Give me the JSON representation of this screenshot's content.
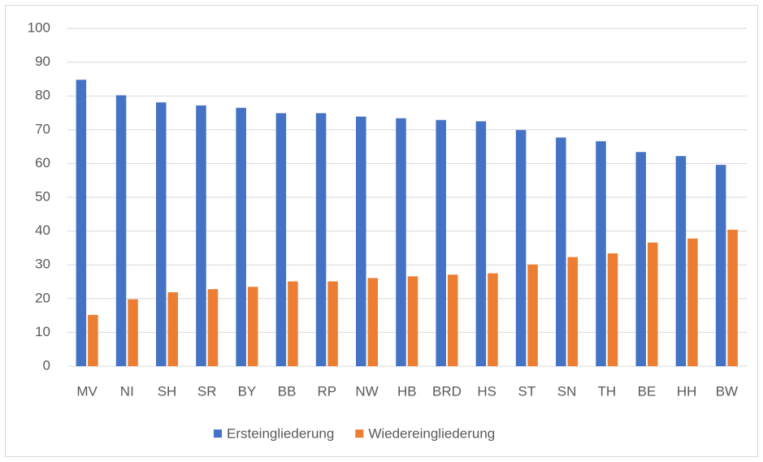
{
  "chart_data": {
    "type": "bar",
    "categories": [
      "MV",
      "NI",
      "SH",
      "SR",
      "BY",
      "BB",
      "RP",
      "NW",
      "HB",
      "BRD",
      "HS",
      "ST",
      "SN",
      "TH",
      "BE",
      "HH",
      "BW"
    ],
    "series": [
      {
        "name": "Ersteingliederung",
        "color": "#4472c4",
        "values": [
          84.8,
          80.2,
          78.1,
          77.2,
          76.5,
          74.9,
          74.9,
          73.9,
          73.4,
          72.9,
          72.5,
          69.9,
          67.7,
          66.6,
          63.4,
          62.2,
          59.6
        ]
      },
      {
        "name": "Wiedereingliederung",
        "color": "#ed7d31",
        "values": [
          15.2,
          19.8,
          21.9,
          22.8,
          23.5,
          25.1,
          25.1,
          26.1,
          26.6,
          27.1,
          27.5,
          30.1,
          32.3,
          33.4,
          36.6,
          37.8,
          40.4
        ]
      }
    ],
    "ylim": [
      0,
      100
    ],
    "yticks": [
      0,
      10,
      20,
      30,
      40,
      50,
      60,
      70,
      80,
      90,
      100
    ],
    "grid": true,
    "legend": "bottom"
  }
}
